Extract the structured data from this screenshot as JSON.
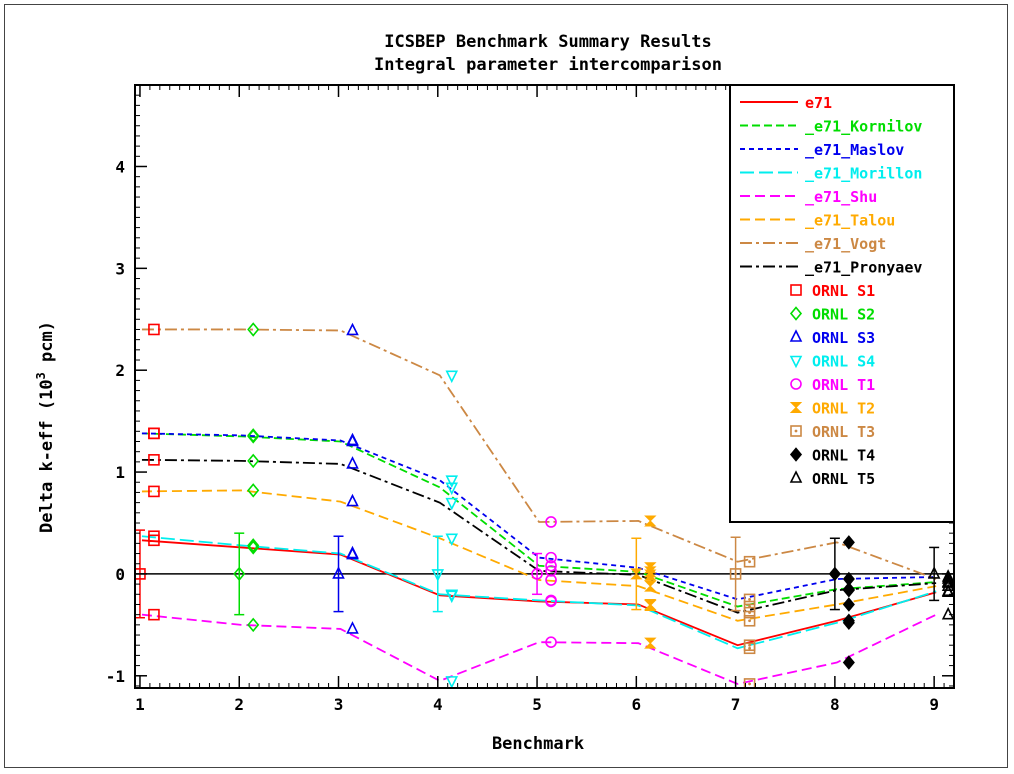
{
  "chart_data": {
    "type": "line",
    "title": "ICSBEP Benchmark Summary Results",
    "subtitle": "Integral parameter intercomparison",
    "xlabel": "Benchmark",
    "ylabel_main": "Delta k-eff (10",
    "ylabel_exp": "3",
    "ylabel_tail": " pcm)",
    "xlim": [
      0.95,
      9.2
    ],
    "ylim": [
      -1.12,
      4.8
    ],
    "xticks": [
      1,
      2,
      3,
      4,
      5,
      6,
      7,
      8,
      9
    ],
    "yticks": [
      -1,
      0,
      1,
      2,
      3,
      4
    ],
    "x": [
      1.02,
      2.02,
      3.02,
      4.02,
      5.02,
      6.02,
      7.02,
      8.02,
      9.02
    ],
    "series": [
      {
        "name": "e71",
        "color": "#ff0000",
        "dash": "",
        "values": [
          0.33,
          0.26,
          0.19,
          -0.21,
          -0.27,
          -0.3,
          -0.7,
          -0.46,
          -0.18
        ]
      },
      {
        "name": "_e71_Kornilov",
        "color": "#00dd00",
        "dash": "8,4",
        "values": [
          1.38,
          1.35,
          1.3,
          0.85,
          0.08,
          0.02,
          -0.32,
          -0.15,
          -0.08
        ]
      },
      {
        "name": "_e71_Maslov",
        "color": "#0000ee",
        "dash": "5,4",
        "values": [
          1.38,
          1.36,
          1.31,
          0.92,
          0.16,
          0.06,
          -0.25,
          -0.05,
          -0.03
        ]
      },
      {
        "name": "_e71_Morillon",
        "color": "#00eeee",
        "dash": "14,5",
        "values": [
          0.37,
          0.28,
          0.2,
          -0.2,
          -0.26,
          -0.31,
          -0.73,
          -0.48,
          -0.17
        ]
      },
      {
        "name": "_e71_Shu",
        "color": "#ff00ff",
        "dash": "10,5",
        "values": [
          -0.4,
          -0.5,
          -0.54,
          -1.05,
          -0.67,
          -0.68,
          -1.08,
          -0.87,
          -0.4
        ]
      },
      {
        "name": "_e71_Talou",
        "color": "#ffaa00",
        "dash": "10,5",
        "values": [
          0.81,
          0.82,
          0.71,
          0.35,
          -0.06,
          -0.12,
          -0.46,
          -0.3,
          -0.12
        ]
      },
      {
        "name": "_e71_Vogt",
        "color": "#cc8844",
        "dash": "12,4,3,4",
        "values": [
          2.4,
          2.4,
          2.39,
          1.95,
          0.51,
          0.52,
          0.12,
          0.31,
          -0.05
        ]
      },
      {
        "name": "_e71_Pronyaev",
        "color": "#000000",
        "dash": "12,4,3,4",
        "values": [
          1.12,
          1.11,
          1.08,
          0.7,
          0.03,
          -0.01,
          -0.38,
          -0.16,
          -0.09
        ]
      }
    ],
    "experiments": [
      {
        "name": "ORNL S1",
        "color": "#ff0000",
        "marker": "square",
        "x": 1.0,
        "value": 0.0,
        "error": 0.43
      },
      {
        "name": "ORNL S2",
        "color": "#00dd00",
        "marker": "diamond",
        "x": 2.0,
        "value": 0.0,
        "error": 0.4
      },
      {
        "name": "ORNL S3",
        "color": "#0000ee",
        "marker": "triangle",
        "x": 3.0,
        "value": 0.0,
        "error": 0.37
      },
      {
        "name": "ORNL S4",
        "color": "#00eeee",
        "marker": "triangle-down",
        "x": 4.0,
        "value": 0.0,
        "error": 0.37
      },
      {
        "name": "ORNL T1",
        "color": "#ff00ff",
        "marker": "circle",
        "x": 5.0,
        "value": 0.0,
        "error": 0.2
      },
      {
        "name": "ORNL T2",
        "color": "#ffaa00",
        "marker": "bowtie",
        "x": 6.0,
        "value": 0.0,
        "error": 0.35
      },
      {
        "name": "ORNL T3",
        "color": "#cc8844",
        "marker": "dotted-square",
        "x": 7.0,
        "value": 0.0,
        "error": 0.36
      },
      {
        "name": "ORNL T4",
        "color": "#000000",
        "marker": "filled-diamond",
        "x": 8.0,
        "value": 0.0,
        "error": 0.35
      },
      {
        "name": "ORNL T5",
        "color": "#000000",
        "marker": "triangle",
        "x": 9.0,
        "value": 0.0,
        "error": 0.26
      }
    ],
    "grid": false,
    "legend_position": "top-right"
  }
}
